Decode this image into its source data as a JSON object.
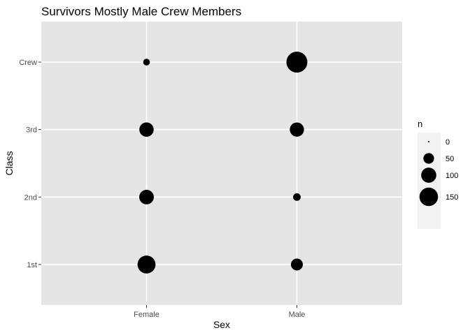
{
  "chart_data": {
    "type": "scatter",
    "title": "Survivors Mostly Male Crew Members",
    "xlabel": "Sex",
    "ylabel": "Class",
    "x_categories": [
      "Female",
      "Male"
    ],
    "y_categories": [
      "1st",
      "2nd",
      "3rd",
      "Crew"
    ],
    "points": [
      {
        "x": "Female",
        "y": "1st",
        "n": 141
      },
      {
        "x": "Female",
        "y": "2nd",
        "n": 93
      },
      {
        "x": "Female",
        "y": "3rd",
        "n": 90
      },
      {
        "x": "Female",
        "y": "Crew",
        "n": 20
      },
      {
        "x": "Male",
        "y": "1st",
        "n": 62
      },
      {
        "x": "Male",
        "y": "2nd",
        "n": 25
      },
      {
        "x": "Male",
        "y": "3rd",
        "n": 88
      },
      {
        "x": "Male",
        "y": "Crew",
        "n": 192
      }
    ],
    "size_legend": {
      "title": "n",
      "values": [
        0,
        50,
        100,
        150
      ],
      "labels": [
        "0",
        "50",
        "100",
        "150"
      ]
    },
    "grid": true,
    "legend_position": "right",
    "panel_color": "#e5e5e5",
    "point_color": "#000000"
  }
}
